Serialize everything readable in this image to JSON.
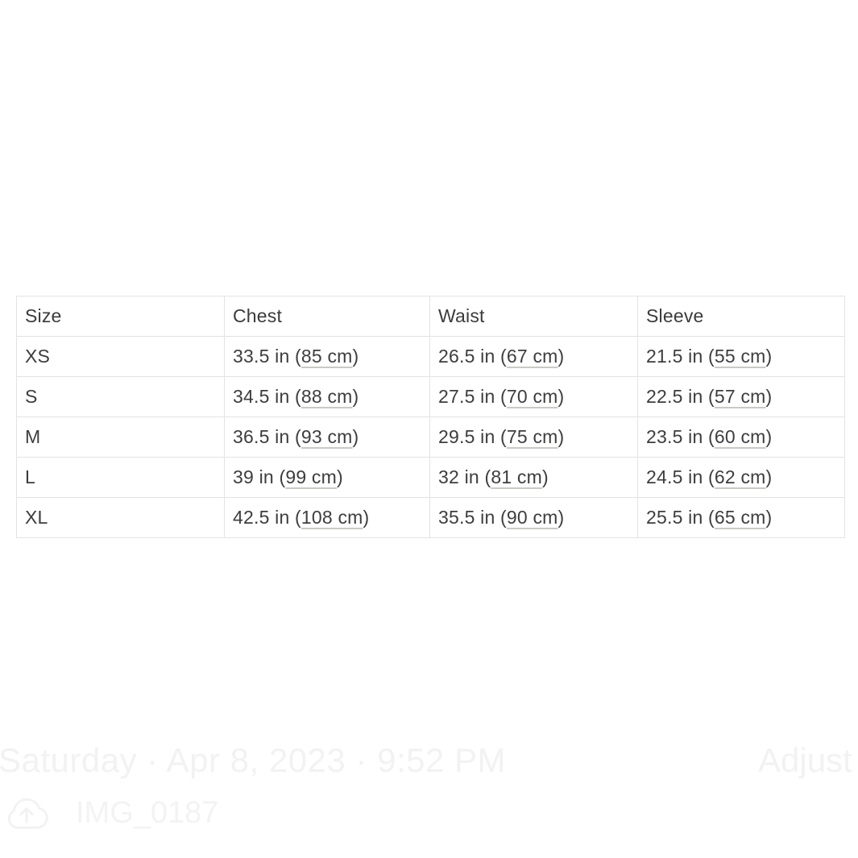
{
  "colors": {
    "background": "#ffffff",
    "table_text": "#3d3d3d",
    "table_border": "#e3e3e3",
    "cm_underline": "#c9c9c6",
    "overlay_text": "#f2f2f2"
  },
  "size_chart": {
    "columns": [
      "Size",
      "Chest",
      "Waist",
      "Sleeve"
    ],
    "rows": [
      {
        "size": "XS",
        "chest_in": "33.5 in",
        "chest_cm": "85 cm",
        "waist_in": "26.5 in",
        "waist_cm": "67 cm",
        "sleeve_in": "21.5 in",
        "sleeve_cm": "55 cm"
      },
      {
        "size": "S",
        "chest_in": "34.5 in",
        "chest_cm": "88 cm",
        "waist_in": "27.5 in",
        "waist_cm": "70 cm",
        "sleeve_in": "22.5 in",
        "sleeve_cm": "57 cm"
      },
      {
        "size": "M",
        "chest_in": "36.5 in",
        "chest_cm": "93 cm",
        "waist_in": "29.5 in",
        "waist_cm": "75 cm",
        "sleeve_in": "23.5 in",
        "sleeve_cm": "60 cm"
      },
      {
        "size": "L",
        "chest_in": "39 in",
        "chest_cm": "99 cm",
        "waist_in": "32 in",
        "waist_cm": "81 cm",
        "sleeve_in": "24.5 in",
        "sleeve_cm": "62 cm"
      },
      {
        "size": "XL",
        "chest_in": "42.5 in",
        "chest_cm": "108 cm",
        "waist_in": "35.5 in",
        "waist_cm": "90 cm",
        "sleeve_in": "25.5 in",
        "sleeve_cm": "65 cm"
      }
    ]
  },
  "photo_overlay": {
    "datetime": "Saturday · Apr 8, 2023 · 9:52 PM",
    "adjust_label": "Adjust",
    "filename": "IMG_0187",
    "icon": "cloud-upload-icon"
  }
}
